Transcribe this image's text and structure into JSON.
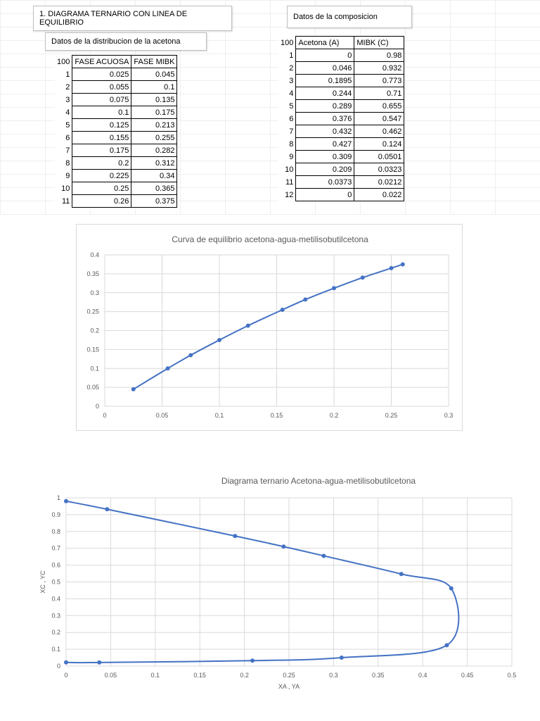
{
  "sheet": {
    "main_title": "1. DIAGRAMA TERNARIO CON LINEA DE EQUILIBRIO",
    "dist_title": "Datos de la distribucion de la acetona",
    "comp_title": "Datos de la composicion"
  },
  "dist_table": {
    "corner": "100",
    "headers": [
      "FASE ACUOSA",
      "FASE MIBK"
    ],
    "rows": [
      [
        "1",
        "0.025",
        "0.045"
      ],
      [
        "2",
        "0.055",
        "0.1"
      ],
      [
        "3",
        "0.075",
        "0.135"
      ],
      [
        "4",
        "0.1",
        "0.175"
      ],
      [
        "5",
        "0.125",
        "0.213"
      ],
      [
        "6",
        "0.155",
        "0.255"
      ],
      [
        "7",
        "0.175",
        "0.282"
      ],
      [
        "8",
        "0.2",
        "0.312"
      ],
      [
        "9",
        "0.225",
        "0.34"
      ],
      [
        "10",
        "0.25",
        "0.365"
      ],
      [
        "11",
        "0.26",
        "0.375"
      ]
    ]
  },
  "comp_table": {
    "corner": "100",
    "headers": [
      "Acetona (A)",
      "MIBK (C)"
    ],
    "rows": [
      [
        "1",
        "0",
        "0.98"
      ],
      [
        "2",
        "0.046",
        "0.932"
      ],
      [
        "3",
        "0.1895",
        "0.773"
      ],
      [
        "4",
        "0.244",
        "0.71"
      ],
      [
        "5",
        "0.289",
        "0.655"
      ],
      [
        "6",
        "0.376",
        "0.547"
      ],
      [
        "7",
        "0.432",
        "0.462"
      ],
      [
        "8",
        "0.427",
        "0.124"
      ],
      [
        "9",
        "0.309",
        "0.0501"
      ],
      [
        "10",
        "0.209",
        "0.0323"
      ],
      [
        "11",
        "0.0373",
        "0.0212"
      ],
      [
        "12",
        "0",
        "0.022"
      ]
    ]
  },
  "chart_data": [
    {
      "type": "line",
      "title": "Curva de equilibrio acetona-agua-metilisobutilcetona",
      "xlabel": "",
      "ylabel": "",
      "xlim": [
        0,
        0.3
      ],
      "ylim": [
        0,
        0.4
      ],
      "xticks": [
        "0",
        "0.05",
        "0.1",
        "0.15",
        "0.2",
        "0.25",
        "0.3"
      ],
      "yticks": [
        "0",
        "0.05",
        "0.1",
        "0.15",
        "0.2",
        "0.25",
        "0.3",
        "0.35",
        "0.4"
      ],
      "grid": true,
      "legend": "none",
      "color": "#4472c4",
      "series": [
        {
          "x": [
            0.025,
            0.055,
            0.075,
            0.1,
            0.125,
            0.155,
            0.175,
            0.2,
            0.225,
            0.25,
            0.26
          ],
          "y": [
            0.045,
            0.1,
            0.135,
            0.175,
            0.213,
            0.255,
            0.282,
            0.312,
            0.34,
            0.365,
            0.375
          ]
        }
      ]
    },
    {
      "type": "scatter",
      "title": "Diagrama ternario Acetona-agua-metilisobutilcetona",
      "xlabel": "XA , YA",
      "ylabel": "XC , YC",
      "xlim": [
        0,
        0.5
      ],
      "ylim": [
        0,
        1
      ],
      "xticks": [
        "0",
        "0.05",
        "0.1",
        "0.15",
        "0.2",
        "0.25",
        "0.3",
        "0.35",
        "0.4",
        "0.45",
        "0.5"
      ],
      "yticks": [
        "0",
        "0.1",
        "0.2",
        "0.3",
        "0.4",
        "0.5",
        "0.6",
        "0.7",
        "0.8",
        "0.9",
        "1"
      ],
      "grid": true,
      "legend": "none",
      "color": "#4472c4",
      "series": [
        {
          "x": [
            0,
            0.046,
            0.1895,
            0.244,
            0.289,
            0.376,
            0.432,
            0.427,
            0.309,
            0.209,
            0.0373,
            0
          ],
          "y": [
            0.98,
            0.932,
            0.773,
            0.71,
            0.655,
            0.547,
            0.462,
            0.124,
            0.0501,
            0.0323,
            0.0212,
            0.022
          ]
        }
      ]
    }
  ]
}
